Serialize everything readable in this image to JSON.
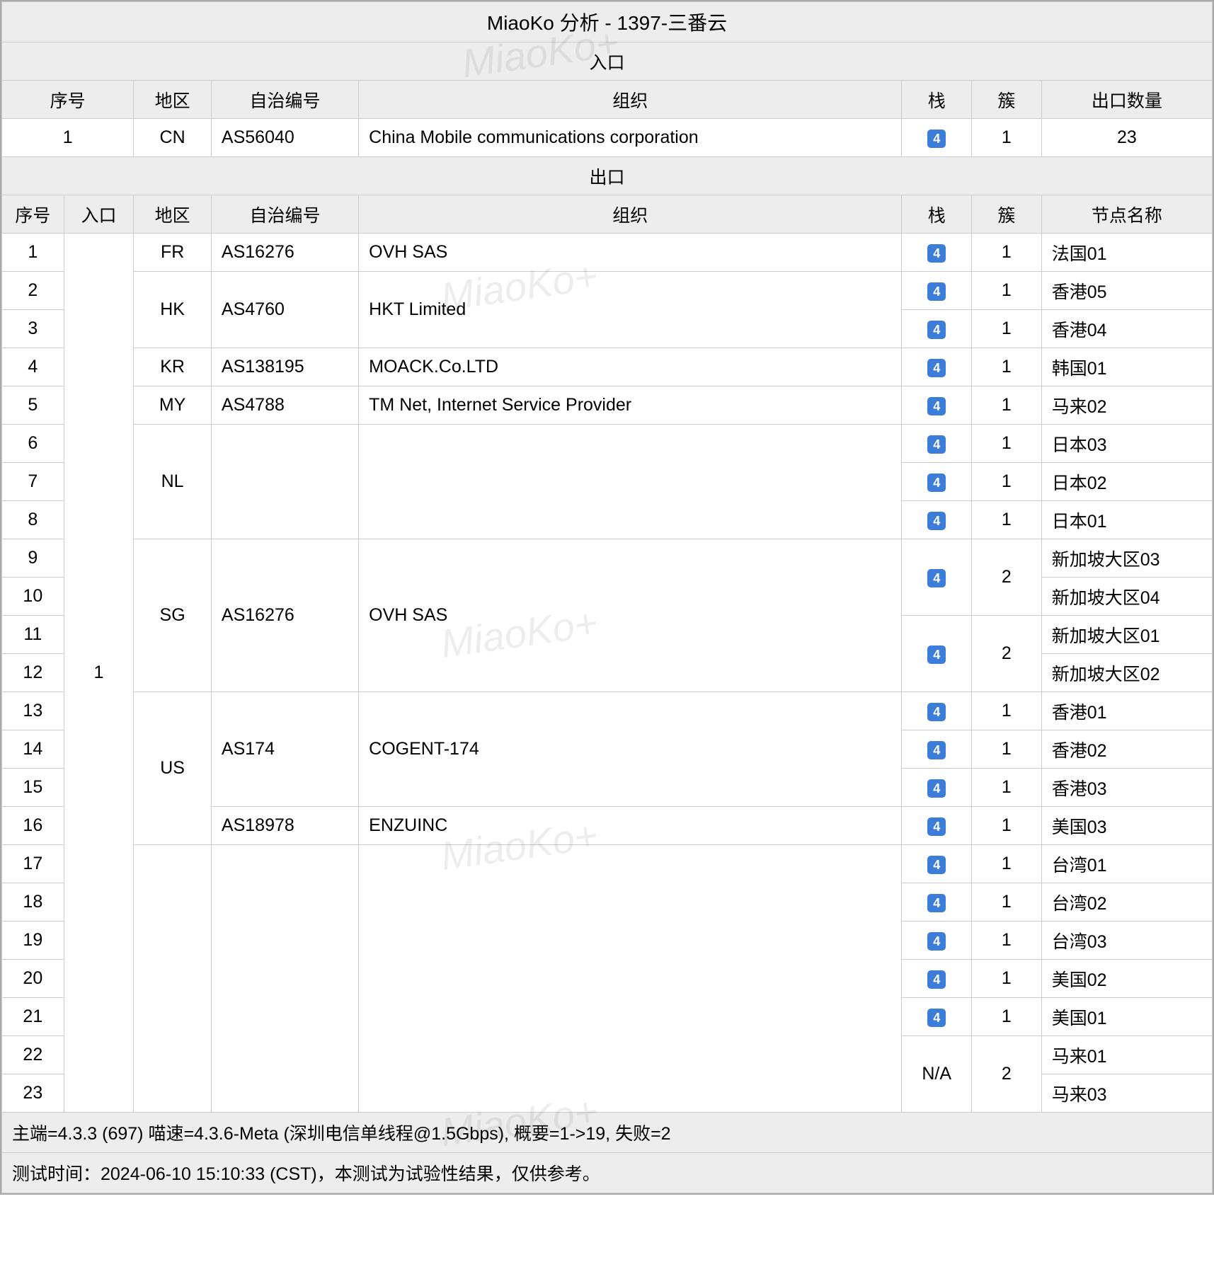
{
  "title": "MiaoKo 分析 - 1397-三番云",
  "watermark_text": "MiaoKo+",
  "colors": {
    "header_bg": "#ededed",
    "border": "#cccccc",
    "badge_bg": "#3b7dd8",
    "badge_fg": "#ffffff"
  },
  "entry_section": {
    "label": "入口",
    "headers": {
      "seq": "序号",
      "region": "地区",
      "asn": "自治编号",
      "org": "组织",
      "stack": "栈",
      "cluster": "簇",
      "exit_count": "出口数量"
    },
    "row": {
      "seq": "1",
      "region": "CN",
      "asn": "AS56040",
      "org": "China Mobile communications corporation",
      "stack": "4",
      "cluster": "1",
      "exit_count": "23"
    }
  },
  "exit_section": {
    "label": "出口",
    "headers": {
      "seq": "序号",
      "entry": "入口",
      "region": "地区",
      "asn": "自治编号",
      "org": "组织",
      "stack": "栈",
      "cluster": "簇",
      "node": "节点名称"
    },
    "entry_value": "1",
    "rows": [
      {
        "seq": "1",
        "region": "FR",
        "region_rs": 1,
        "asn": "AS16276",
        "asn_rs": 1,
        "org": "OVH SAS",
        "org_rs": 1,
        "stack": "4",
        "stack_rs": 1,
        "cluster": "1",
        "cluster_rs": 1,
        "node": "法国01"
      },
      {
        "seq": "2",
        "region": "HK",
        "region_rs": 2,
        "asn": "AS4760",
        "asn_rs": 2,
        "org": "HKT Limited",
        "org_rs": 2,
        "stack": "4",
        "stack_rs": 1,
        "cluster": "1",
        "cluster_rs": 1,
        "node": "香港05"
      },
      {
        "seq": "3",
        "stack": "4",
        "stack_rs": 1,
        "cluster": "1",
        "cluster_rs": 1,
        "node": "香港04"
      },
      {
        "seq": "4",
        "region": "KR",
        "region_rs": 1,
        "asn": "AS138195",
        "asn_rs": 1,
        "org": "MOACK.Co.LTD",
        "org_rs": 1,
        "stack": "4",
        "stack_rs": 1,
        "cluster": "1",
        "cluster_rs": 1,
        "node": "韩国01"
      },
      {
        "seq": "5",
        "region": "MY",
        "region_rs": 1,
        "asn": "AS4788",
        "asn_rs": 1,
        "org": "TM Net, Internet Service Provider",
        "org_rs": 1,
        "stack": "4",
        "stack_rs": 1,
        "cluster": "1",
        "cluster_rs": 1,
        "node": "马来02"
      },
      {
        "seq": "6",
        "region": "NL",
        "region_rs": 3,
        "asn": "",
        "asn_rs": 3,
        "org": "",
        "org_rs": 3,
        "stack": "4",
        "stack_rs": 1,
        "cluster": "1",
        "cluster_rs": 1,
        "node": "日本03"
      },
      {
        "seq": "7",
        "stack": "4",
        "stack_rs": 1,
        "cluster": "1",
        "cluster_rs": 1,
        "node": "日本02"
      },
      {
        "seq": "8",
        "stack": "4",
        "stack_rs": 1,
        "cluster": "1",
        "cluster_rs": 1,
        "node": "日本01"
      },
      {
        "seq": "9",
        "region": "SG",
        "region_rs": 4,
        "asn": "AS16276",
        "asn_rs": 4,
        "org": "OVH SAS",
        "org_rs": 4,
        "stack": "4",
        "stack_rs": 2,
        "cluster": "2",
        "cluster_rs": 2,
        "node": "新加坡大区03"
      },
      {
        "seq": "10",
        "node": "新加坡大区04"
      },
      {
        "seq": "11",
        "stack": "4",
        "stack_rs": 2,
        "cluster": "2",
        "cluster_rs": 2,
        "node": "新加坡大区01"
      },
      {
        "seq": "12",
        "node": "新加坡大区02"
      },
      {
        "seq": "13",
        "region": "US",
        "region_rs": 4,
        "asn": "AS174",
        "asn_rs": 3,
        "org": "COGENT-174",
        "org_rs": 3,
        "stack": "4",
        "stack_rs": 1,
        "cluster": "1",
        "cluster_rs": 1,
        "node": "香港01"
      },
      {
        "seq": "14",
        "stack": "4",
        "stack_rs": 1,
        "cluster": "1",
        "cluster_rs": 1,
        "node": "香港02"
      },
      {
        "seq": "15",
        "stack": "4",
        "stack_rs": 1,
        "cluster": "1",
        "cluster_rs": 1,
        "node": "香港03"
      },
      {
        "seq": "16",
        "asn": "AS18978",
        "asn_rs": 1,
        "org": "ENZUINC",
        "org_rs": 1,
        "stack": "4",
        "stack_rs": 1,
        "cluster": "1",
        "cluster_rs": 1,
        "node": "美国03"
      },
      {
        "seq": "17",
        "region": "",
        "region_rs": 7,
        "asn": "",
        "asn_rs": 7,
        "org": "",
        "org_rs": 7,
        "stack": "4",
        "stack_rs": 1,
        "cluster": "1",
        "cluster_rs": 1,
        "node": "台湾01"
      },
      {
        "seq": "18",
        "stack": "4",
        "stack_rs": 1,
        "cluster": "1",
        "cluster_rs": 1,
        "node": "台湾02"
      },
      {
        "seq": "19",
        "stack": "4",
        "stack_rs": 1,
        "cluster": "1",
        "cluster_rs": 1,
        "node": "台湾03"
      },
      {
        "seq": "20",
        "stack": "4",
        "stack_rs": 1,
        "cluster": "1",
        "cluster_rs": 1,
        "node": "美国02"
      },
      {
        "seq": "21",
        "stack": "4",
        "stack_rs": 1,
        "cluster": "1",
        "cluster_rs": 1,
        "node": "美国01"
      },
      {
        "seq": "22",
        "stack": "N/A",
        "stack_plain": true,
        "stack_rs": 2,
        "cluster": "2",
        "cluster_rs": 2,
        "node": "马来01"
      },
      {
        "seq": "23",
        "node": "马来03"
      }
    ]
  },
  "footer": {
    "line1": "主端=4.3.3 (697) 喵速=4.3.6-Meta (深圳电信单线程@1.5Gbps), 概要=1->19, 失败=2",
    "line2": "测试时间：2024-06-10 15:10:33 (CST)，本测试为试验性结果，仅供参考。"
  }
}
